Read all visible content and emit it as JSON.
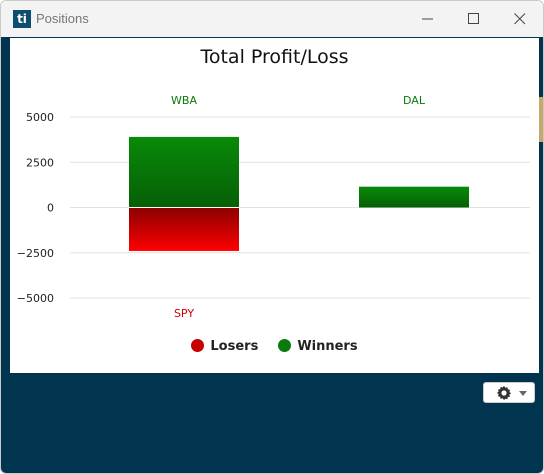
{
  "window": {
    "title": "Positions",
    "app_logo_text": "ti"
  },
  "chart_data": {
    "type": "bar",
    "title": "Total Profit/Loss",
    "ylim": [
      -5000,
      5000
    ],
    "yticks": [
      "5000",
      "2500",
      "0",
      "−2500",
      "−5000"
    ],
    "ytick_values": [
      5000,
      2500,
      0,
      -2500,
      -5000
    ],
    "bars": [
      {
        "label": "WBA",
        "value": 3900,
        "group": "Winners",
        "slot": 0
      },
      {
        "label": "SPY",
        "value": -2400,
        "group": "Losers",
        "slot": 0
      },
      {
        "label": "DAL",
        "value": 1150,
        "group": "Winners",
        "slot": 1
      }
    ],
    "grid": true,
    "legend": [
      {
        "name": "Losers",
        "color": "#c40000"
      },
      {
        "name": "Winners",
        "color": "#0a7a0a"
      }
    ],
    "legend_position": "bottom"
  },
  "colors": {
    "winner": "#088008",
    "winner_dark": "#066206",
    "loser": "#ff0000",
    "loser_dark": "#8a0000",
    "winner_label": "#0a7a0a",
    "loser_label": "#d40000",
    "frame": "#01344f"
  },
  "toolbar": {
    "settings_icon": "gear-icon",
    "settings_caret_icon": "chevron-down-icon"
  }
}
